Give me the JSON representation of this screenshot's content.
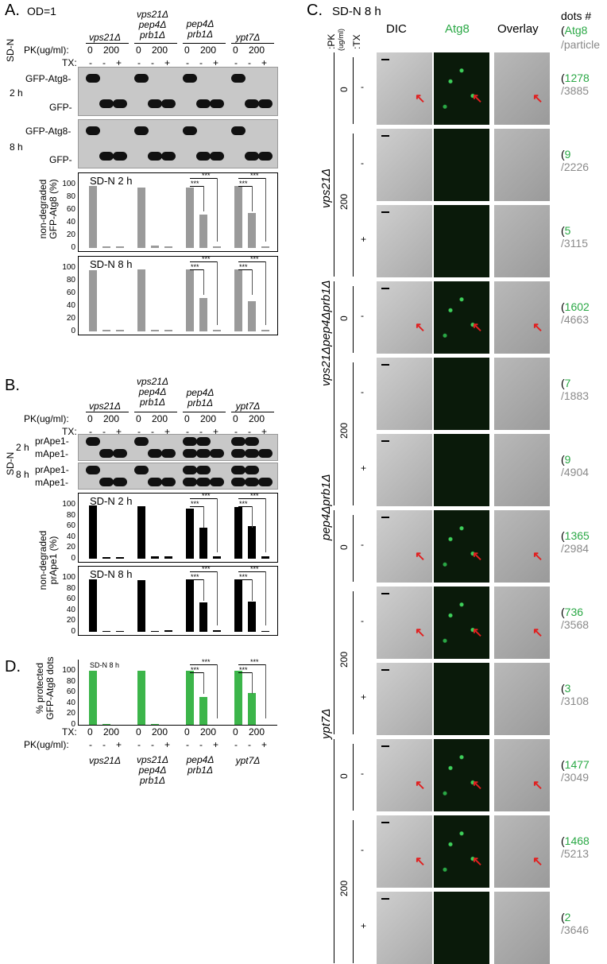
{
  "panelA": {
    "label": "A.",
    "od": "OD=1",
    "medium": "SD-N",
    "pk_label": "PK(ug/ml):",
    "tx_label": "TX:",
    "strains": [
      {
        "l1": "vps21Δ",
        "l2": "",
        "l3": ""
      },
      {
        "l1": "vps21Δ",
        "l2": "pep4Δ",
        "l3": "prb1Δ"
      },
      {
        "l1": "pep4Δ",
        "l2": "prb1Δ",
        "l3": ""
      },
      {
        "l1": "ypt7Δ",
        "l2": "",
        "l3": ""
      }
    ],
    "pk_values": [
      "0",
      "200"
    ],
    "tx_values": [
      "-",
      "-",
      "+"
    ],
    "times": [
      "2 h",
      "8 h"
    ],
    "band_upper": "GFP-Atg8-",
    "band_lower": "GFP-",
    "chart1_title": "SD-N 2 h",
    "chart2_title": "SD-N 8 h",
    "ylabel_1": "non-degraded",
    "ylabel_2": "GFP-Atg8 (%)",
    "sig": "***"
  },
  "panelB": {
    "label": "B.",
    "pk_label": "PK(ug/ml):",
    "tx_label": "TX:",
    "medium": "SD-N",
    "band_upper": "prApe1-",
    "band_lower": "mApe1-",
    "times": [
      "2 h",
      "8 h"
    ],
    "chart1_title": "SD-N 2 h",
    "chart2_title": "SD-N 8 h",
    "ylabel_1": "non-degraded",
    "ylabel_2": "prApe1 (%)",
    "sig": "***"
  },
  "panelC": {
    "label": "C.",
    "title": "SD-N 8 h",
    "col_dic": "DIC",
    "col_atg8": "Atg8",
    "col_overlay": "Overlay",
    "col_dots": "dots #",
    "col_dots_atg8": "Atg8",
    "col_dots_particle": "/particle",
    "pk_head": ":PK",
    "pk_unit": "(ug/ml)",
    "tx_head": ":TX",
    "rows": [
      {
        "pk": "0",
        "tx": "-",
        "atg8": "1278",
        "particle": "/3885",
        "on": true
      },
      {
        "pk": "200",
        "tx": "-",
        "atg8": "9",
        "particle": "/2226",
        "on": false
      },
      {
        "pk": "",
        "tx": "+",
        "atg8": "5",
        "particle": "/3115",
        "on": false
      },
      {
        "pk": "0",
        "tx": "-",
        "atg8": "1602",
        "particle": "/4663",
        "on": true
      },
      {
        "pk": "200",
        "tx": "-",
        "atg8": "7",
        "particle": "/1883",
        "on": false
      },
      {
        "pk": "",
        "tx": "+",
        "atg8": "9",
        "particle": "/4904",
        "on": false
      },
      {
        "pk": "0",
        "tx": "-",
        "atg8": "1365",
        "particle": "/2984",
        "on": true
      },
      {
        "pk": "200",
        "tx": "-",
        "atg8": "736",
        "particle": "/3568",
        "on": true
      },
      {
        "pk": "",
        "tx": "+",
        "atg8": "3",
        "particle": "/3108",
        "on": false
      },
      {
        "pk": "0",
        "tx": "-",
        "atg8": "1477",
        "particle": "/3049",
        "on": true
      },
      {
        "pk": "200",
        "tx": "-",
        "atg8": "1468",
        "particle": "/5213",
        "on": true
      },
      {
        "pk": "",
        "tx": "+",
        "atg8": "2",
        "particle": "/3646",
        "on": false
      }
    ],
    "strains": [
      "vps21Δ",
      "vps21Δpep4Δprb1Δ",
      "pep4Δprb1Δ",
      "ypt7Δ"
    ]
  },
  "panelD": {
    "label": "D.",
    "chart_title": "SD-N 8 h",
    "ylabel_1": "% protected",
    "ylabel_2": "GFP-Atg8 dots",
    "tx_label": "TX:",
    "pk_label": "PK(ug/ml):",
    "sig": "***"
  },
  "chart_data": [
    {
      "type": "bar",
      "title": "SD-N 2 h",
      "ylabel": "non-degraded GFP-Atg8 (%)",
      "ylim": [
        0,
        100
      ],
      "yticks": [
        "0",
        "20",
        "40",
        "60",
        "80",
        "100"
      ],
      "series": [
        {
          "values": [
            97,
            2,
            2,
            95,
            4,
            2,
            95,
            52,
            2,
            97,
            55,
            2
          ]
        }
      ],
      "color": "#9a9a9a"
    },
    {
      "type": "bar",
      "title": "SD-N 8 h",
      "ylabel": "non-degraded GFP-Atg8 (%)",
      "ylim": [
        0,
        100
      ],
      "yticks": [
        "0",
        "20",
        "40",
        "60",
        "80",
        "100"
      ],
      "series": [
        {
          "values": [
            96,
            2,
            3,
            97,
            2,
            2,
            98,
            52,
            3,
            97,
            48,
            2
          ]
        }
      ],
      "color": "#9a9a9a"
    },
    {
      "type": "bar",
      "title": "SD-N 2 h",
      "ylabel": "non-degraded prApe1 (%)",
      "ylim": [
        0,
        100
      ],
      "yticks": [
        "0",
        "20",
        "40",
        "60",
        "80",
        "100"
      ],
      "series": [
        {
          "values": [
            98,
            3,
            3,
            97,
            4,
            4,
            93,
            57,
            4,
            96,
            60,
            4
          ]
        }
      ],
      "color": "#000000"
    },
    {
      "type": "bar",
      "title": "SD-N 8 h",
      "ylabel": "non-degraded prApe1 (%)",
      "ylim": [
        0,
        100
      ],
      "yticks": [
        "0",
        "20",
        "40",
        "60",
        "80",
        "100"
      ],
      "series": [
        {
          "values": [
            97,
            2,
            2,
            96,
            2,
            3,
            97,
            54,
            3,
            97,
            56,
            2
          ]
        }
      ],
      "color": "#000000"
    },
    {
      "type": "bar",
      "title": "SD-N 8 h",
      "ylabel": "% protected GFP-Atg8 dots",
      "ylim": [
        0,
        100
      ],
      "yticks": [
        "0",
        "20",
        "40",
        "60",
        "80",
        "100"
      ],
      "series": [
        {
          "values": [
            100,
            1,
            0,
            100,
            1,
            0,
            100,
            51,
            0,
            100,
            59,
            0
          ]
        }
      ],
      "color": "#3cb54a"
    }
  ]
}
